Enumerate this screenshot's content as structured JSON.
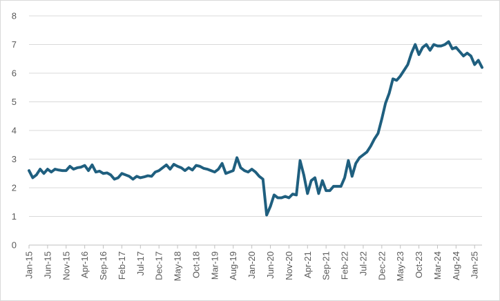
{
  "chart_data": {
    "type": "line",
    "title": "",
    "xlabel": "",
    "ylabel": "",
    "ylim": [
      0,
      8
    ],
    "yticks": [
      "0",
      "1",
      "2",
      "3",
      "4",
      "5",
      "6",
      "7",
      "8"
    ],
    "grid": true,
    "line_color": "#1f5f7f",
    "x_tick_labels": [
      "Jan-15",
      "Jun-15",
      "Nov-15",
      "Apr-16",
      "Sep-16",
      "Feb-17",
      "Jul-17",
      "Dec-17",
      "May-18",
      "Oct-18",
      "Mar-19",
      "Aug-19",
      "Jan-20",
      "Jun-20",
      "Nov-20",
      "Apr-21",
      "Sep-21",
      "Feb-22",
      "Jul-22",
      "Dec-22",
      "May-23",
      "Oct-23",
      "Mar-24",
      "Aug-24",
      "Jan-25"
    ],
    "series": [
      {
        "values": [
          2.6,
          2.35,
          2.45,
          2.65,
          2.5,
          2.65,
          2.55,
          2.65,
          2.62,
          2.6,
          2.6,
          2.75,
          2.65,
          2.7,
          2.72,
          2.78,
          2.6,
          2.8,
          2.55,
          2.58,
          2.5,
          2.52,
          2.45,
          2.3,
          2.35,
          2.5,
          2.45,
          2.4,
          2.3,
          2.4,
          2.35,
          2.38,
          2.42,
          2.4,
          2.55,
          2.6,
          2.7,
          2.8,
          2.65,
          2.82,
          2.75,
          2.7,
          2.6,
          2.7,
          2.62,
          2.78,
          2.75,
          2.68,
          2.65,
          2.6,
          2.55,
          2.65,
          2.85,
          2.5,
          2.55,
          2.6,
          3.05,
          2.7,
          2.6,
          2.55,
          2.65,
          2.55,
          2.4,
          2.3,
          1.05,
          1.35,
          1.75,
          1.65,
          1.65,
          1.7,
          1.65,
          1.78,
          1.75,
          2.95,
          2.45,
          1.8,
          2.25,
          2.35,
          1.8,
          2.25,
          1.9,
          1.9,
          2.05,
          2.05,
          2.05,
          2.35,
          2.95,
          2.4,
          2.85,
          3.05,
          3.15,
          3.25,
          3.45,
          3.7,
          3.9,
          4.4,
          4.95,
          5.3,
          5.8,
          5.75,
          5.9,
          6.1,
          6.3,
          6.7,
          7.0,
          6.65,
          6.9,
          7.0,
          6.8,
          7.0,
          6.95,
          6.95,
          7.0,
          7.1,
          6.85,
          6.9,
          6.75,
          6.6,
          6.7,
          6.6,
          6.3,
          6.45,
          6.2
        ]
      }
    ]
  }
}
